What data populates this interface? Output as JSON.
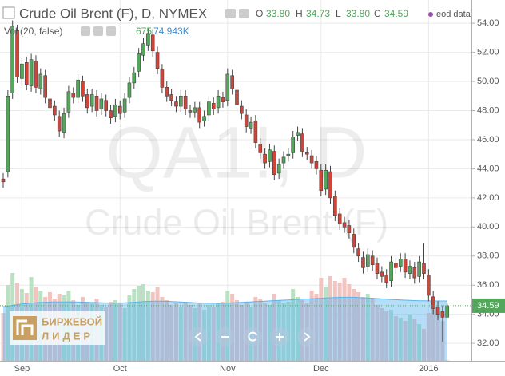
{
  "chart_data": {
    "type": "candlestick",
    "title": "Crude Oil Brent (F), D, NYMEX",
    "source": "eod data",
    "watermark": [
      "QA1!, D",
      "Crude Oil Brent (F)"
    ],
    "categories": [
      null,
      null,
      null,
      null,
      "Sep",
      null,
      null,
      null,
      null,
      null,
      null,
      null,
      null,
      null,
      null,
      null,
      null,
      null,
      null,
      null,
      null,
      null,
      null,
      null,
      null,
      "Oct",
      null,
      null,
      null,
      null,
      null,
      null,
      null,
      null,
      null,
      null,
      null,
      null,
      null,
      null,
      null,
      null,
      null,
      null,
      null,
      null,
      null,
      null,
      "Nov",
      null,
      null,
      null,
      null,
      null,
      null,
      null,
      null,
      null,
      null,
      null,
      null,
      null,
      null,
      null,
      null,
      null,
      null,
      null,
      "Dec",
      null,
      null,
      null,
      null,
      null,
      null,
      null,
      null,
      null,
      null,
      null,
      null,
      null,
      null,
      null,
      null,
      null,
      null,
      null,
      null,
      null,
      null,
      "2016",
      null,
      null,
      null,
      null
    ],
    "open": [
      43.3,
      43.8,
      49.2,
      53.5,
      50.2,
      51.3,
      49.7,
      51.4,
      49.5,
      50.4,
      48.8,
      48.3,
      47.6,
      46.5,
      47.9,
      49.2,
      48.9,
      50.0,
      49.1,
      48.3,
      49.0,
      48.1,
      48.7,
      48.0,
      47.6,
      48.3,
      47.9,
      48.9,
      49.9,
      50.7,
      51.8,
      52.5,
      53.2,
      52.0,
      50.8,
      49.6,
      49.1,
      48.6,
      48.3,
      49.0,
      48.0,
      47.9,
      48.2,
      47.3,
      47.7,
      48.5,
      48.2,
      48.9,
      48.7,
      50.4,
      49.4,
      48.3,
      47.7,
      46.8,
      47.3,
      45.7,
      45.0,
      44.5,
      45.2,
      43.7,
      44.4,
      44.9,
      45.1,
      46.3,
      46.4,
      45.1,
      44.9,
      44.5,
      43.9,
      42.6,
      43.8,
      42.1,
      40.9,
      40.3,
      40.1,
      39.5,
      38.5,
      37.9,
      37.3,
      38.0,
      37.5,
      36.9,
      36.7,
      36.3,
      37.5,
      37.3,
      37.8,
      36.8,
      37.2,
      36.6,
      37.5,
      36.7,
      35.2,
      34.5,
      34.2,
      33.8
    ],
    "high": [
      43.7,
      49.4,
      54.2,
      53.9,
      51.6,
      51.7,
      51.9,
      51.8,
      50.9,
      50.8,
      49.2,
      48.7,
      48.0,
      48.2,
      49.7,
      49.6,
      50.5,
      50.4,
      49.5,
      49.5,
      49.4,
      49.2,
      49.1,
      48.4,
      48.8,
      48.7,
      49.2,
      50.3,
      51.0,
      52.3,
      53.0,
      53.7,
      53.6,
      52.4,
      51.2,
      50.0,
      49.5,
      49.0,
      49.4,
      49.4,
      48.4,
      48.6,
      48.6,
      48.0,
      49.0,
      48.9,
      49.4,
      49.3,
      50.9,
      50.8,
      49.8,
      48.7,
      48.1,
      47.6,
      47.7,
      46.1,
      45.4,
      45.7,
      45.6,
      44.7,
      45.2,
      45.4,
      46.6,
      46.9,
      46.8,
      45.5,
      45.3,
      44.9,
      44.3,
      44.3,
      44.2,
      42.5,
      41.3,
      40.7,
      40.5,
      39.9,
      38.9,
      38.3,
      38.5,
      38.4,
      37.9,
      37.3,
      37.1,
      38.0,
      37.9,
      38.2,
      38.2,
      37.7,
      37.6,
      38.0,
      38.9,
      37.1,
      35.6,
      34.9,
      34.6,
      34.73
    ],
    "low": [
      42.7,
      43.4,
      48.8,
      49.9,
      49.8,
      49.4,
      49.3,
      49.2,
      49.1,
      48.5,
      47.8,
      47.3,
      46.2,
      46.1,
      47.5,
      48.5,
      48.5,
      48.6,
      47.8,
      47.9,
      47.6,
      47.7,
      47.6,
      47.1,
      47.2,
      47.4,
      47.5,
      48.5,
      49.5,
      50.3,
      51.4,
      52.1,
      51.7,
      50.5,
      49.2,
      48.6,
      48.3,
      47.9,
      47.9,
      47.7,
      47.5,
      47.5,
      46.8,
      46.9,
      47.3,
      47.7,
      47.8,
      48.2,
      48.3,
      49.1,
      48.0,
      47.4,
      46.5,
      46.4,
      45.4,
      44.7,
      44.0,
      44.1,
      43.2,
      43.3,
      44.0,
      44.5,
      44.7,
      45.9,
      44.8,
      44.6,
      44.0,
      43.6,
      42.1,
      42.2,
      41.6,
      40.4,
      39.8,
      39.6,
      39.2,
      38.2,
      37.6,
      36.8,
      36.9,
      37.0,
      36.4,
      36.2,
      35.8,
      35.9,
      36.8,
      36.9,
      36.5,
      36.4,
      36.1,
      36.2,
      36.4,
      34.9,
      34.0,
      33.6,
      32.1,
      33.8
    ],
    "close": [
      43.1,
      49.0,
      53.8,
      50.3,
      51.2,
      49.8,
      51.5,
      49.6,
      50.5,
      48.9,
      48.2,
      47.7,
      46.6,
      47.8,
      49.3,
      48.9,
      50.1,
      49.0,
      48.2,
      49.1,
      48.0,
      48.8,
      48.0,
      47.5,
      48.4,
      47.8,
      48.8,
      49.9,
      50.6,
      51.9,
      52.6,
      53.3,
      52.1,
      50.9,
      49.6,
      49.0,
      48.7,
      48.3,
      49.0,
      48.1,
      47.9,
      48.2,
      47.2,
      47.6,
      48.6,
      48.1,
      49.0,
      48.6,
      50.5,
      49.5,
      48.4,
      47.8,
      46.9,
      47.2,
      45.8,
      45.1,
      44.4,
      45.3,
      43.6,
      44.3,
      44.8,
      45.0,
      46.2,
      46.5,
      45.2,
      45.0,
      44.4,
      44.0,
      42.5,
      43.9,
      42.0,
      40.8,
      40.2,
      40.0,
      39.6,
      38.6,
      38.0,
      37.2,
      38.1,
      37.4,
      36.8,
      36.6,
      36.2,
      37.6,
      37.2,
      37.8,
      36.9,
      37.3,
      36.5,
      37.6,
      36.8,
      35.3,
      34.4,
      34.0,
      33.8,
      34.59
    ],
    "up_color": "#53a65b",
    "down_color": "#d0453a",
    "ylim": [
      30.8,
      55.6
    ],
    "yticks": [
      {
        "value": 32,
        "label": "32.00"
      },
      {
        "value": 34,
        "label": "34.00"
      },
      {
        "value": 36,
        "label": "36.00"
      },
      {
        "value": 38,
        "label": "38.00"
      },
      {
        "value": 40,
        "label": "40.00"
      },
      {
        "value": 42,
        "label": "42.00"
      },
      {
        "value": 44,
        "label": "44.00"
      },
      {
        "value": 46,
        "label": "46.00"
      },
      {
        "value": 48,
        "label": "48.00"
      },
      {
        "value": 50,
        "label": "50.00"
      },
      {
        "value": 52,
        "label": "52.00"
      },
      {
        "value": 54,
        "label": "54.00"
      }
    ],
    "grid": true,
    "last_bar": {
      "labels": [
        "O",
        "H",
        "L",
        "C"
      ],
      "value_labels": [
        "33.80",
        "34.73",
        "33.80",
        "34.59"
      ]
    },
    "volume": {
      "title": "Vol (20, false)",
      "up_color": "#b9e2c3",
      "down_color": "#f2c4bf",
      "values": [
        60000,
        95000,
        110000,
        98000,
        90000,
        85000,
        105000,
        92000,
        88000,
        80000,
        86000,
        78000,
        84000,
        82000,
        88000,
        76000,
        70000,
        80000,
        74000,
        72000,
        78000,
        70000,
        68000,
        74000,
        76000,
        72000,
        66000,
        82000,
        90000,
        94000,
        96000,
        88000,
        86000,
        92000,
        80000,
        76000,
        70000,
        72000,
        68000,
        74000,
        70000,
        66000,
        72000,
        64000,
        70000,
        68000,
        72000,
        74000,
        88000,
        84000,
        76000,
        70000,
        74000,
        68000,
        80000,
        78000,
        72000,
        70000,
        84000,
        76000,
        72000,
        74000,
        90000,
        80000,
        76000,
        72000,
        88000,
        84000,
        104000,
        92000,
        106000,
        100000,
        98000,
        104000,
        96000,
        90000,
        86000,
        80000,
        84000,
        78000,
        70000,
        66000,
        62000,
        64000,
        56000,
        54000,
        50000,
        58000,
        52000,
        46000,
        40000,
        60000,
        70000,
        68000,
        50000,
        675
      ],
      "ma": {
        "color": "#5ab4f0",
        "values": [
          68000,
          68500,
          69500,
          70500,
          71200,
          71800,
          72400,
          72900,
          73200,
          73400,
          73600,
          73700,
          73800,
          73800,
          73900,
          73800,
          73600,
          73500,
          73300,
          73100,
          73000,
          72800,
          72600,
          72500,
          72500,
          72600,
          72700,
          73000,
          73400,
          73800,
          74200,
          74500,
          74700,
          74800,
          74800,
          74600,
          74300,
          74000,
          73700,
          73400,
          73100,
          72800,
          72500,
          72300,
          72200,
          72100,
          72100,
          72200,
          72400,
          72700,
          73000,
          73300,
          73600,
          73900,
          74200,
          74500,
          74800,
          75100,
          75400,
          75700,
          76000,
          76300,
          76600,
          76900,
          77200,
          77500,
          77800,
          78100,
          78400,
          78700,
          79000,
          79300,
          79500,
          79600,
          79600,
          79500,
          79300,
          79000,
          78700,
          78400,
          78000,
          77600,
          77200,
          76900,
          76600,
          76300,
          76000,
          75700,
          75500,
          75300,
          75200,
          75100,
          75000,
          74980,
          74960,
          74943
        ],
        "value_label": "74.943K"
      }
    }
  },
  "logo": {
    "line1": "БИРЖЕВОЙ",
    "line2": "ЛИДЕР"
  }
}
